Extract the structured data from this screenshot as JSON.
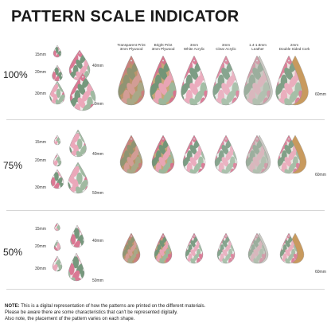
{
  "title": "PATTERN SCALE INDICATOR",
  "rows": [
    {
      "label": "100%",
      "scale": 1.0
    },
    {
      "label": "75%",
      "scale": 0.75
    },
    {
      "label": "50%",
      "scale": 0.5
    }
  ],
  "size_labels": {
    "s15": "15mm",
    "s20": "20mm",
    "s30": "30mm",
    "s40": "40mm",
    "s50": "50mm",
    "s60": "60mm"
  },
  "materials": [
    {
      "line1": "Transparent Print",
      "line2": "3mm Plywood",
      "base": "#b9956a"
    },
    {
      "line1": "Bright Print",
      "line2": "3mm Plywood",
      "base": "#c7a679"
    },
    {
      "line1": "3mm",
      "line2": "White Acrylic",
      "base": "#f3eeee"
    },
    {
      "line1": "3mm",
      "line2": "Clear Acrylic",
      "base": "#e8ecea"
    },
    {
      "line1": "1.4-1.8mm",
      "line2": "Leather",
      "base": "#c9c9c2"
    },
    {
      "line1": "2mm",
      "line2": "Double Sided Cork",
      "base": "#c89a5e"
    }
  ],
  "colors": {
    "pink": "#d9728f",
    "pink_light": "#eaa5b8",
    "green": "#6f9478",
    "green_light": "#9bb89e"
  },
  "note": {
    "prefix": "NOTE:",
    "line1": " This is a digital representation of how the patterns are printed on the different materials.",
    "line2": "Please be aware there are some characteristics that can't be represented digitally.",
    "line3": "Also note, the placement of the pattern varies on each shape."
  }
}
